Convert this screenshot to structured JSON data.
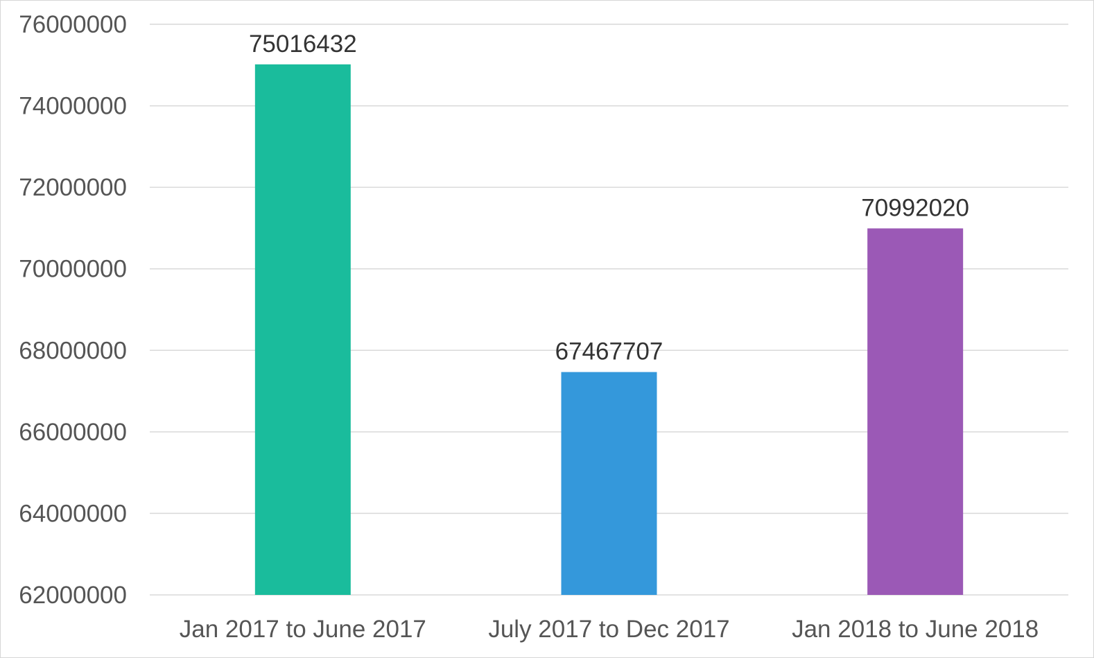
{
  "chart_data": {
    "type": "bar",
    "title": "",
    "xlabel": "",
    "ylabel": "",
    "categories": [
      "Jan 2017 to June 2017",
      "July 2017 to Dec 2017",
      "Jan 2018 to June 2018"
    ],
    "values": [
      75016432,
      67467707,
      70992020
    ],
    "data_labels": [
      "75016432",
      "67467707",
      "70992020"
    ],
    "colors": [
      "#1abc9c",
      "#3498db",
      "#9b59b6"
    ],
    "ylim": [
      62000000,
      76000000
    ],
    "y_ticks": [
      62000000,
      64000000,
      66000000,
      68000000,
      70000000,
      72000000,
      74000000,
      76000000
    ],
    "y_tick_labels": [
      "62000000",
      "64000000",
      "66000000",
      "68000000",
      "70000000",
      "72000000",
      "74000000",
      "76000000"
    ],
    "grid": true,
    "legend": "none"
  }
}
